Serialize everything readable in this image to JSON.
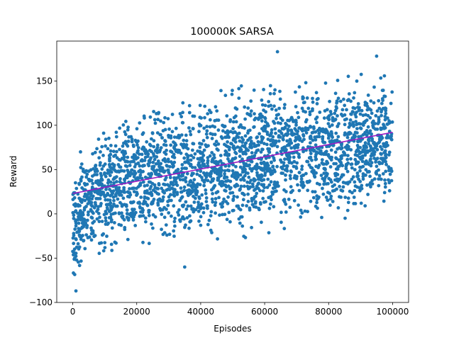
{
  "chart_data": {
    "type": "scatter",
    "title": "100000K SARSA",
    "xlabel": "Episodes",
    "ylabel": "Reward",
    "xlim": [
      -5000,
      105000
    ],
    "ylim": [
      -100,
      195
    ],
    "x_ticks": [
      0,
      20000,
      40000,
      60000,
      80000,
      100000
    ],
    "x_tick_labels": [
      "0",
      "20000",
      "40000",
      "60000",
      "80000",
      "100000"
    ],
    "y_ticks": [
      -100,
      -50,
      0,
      50,
      100,
      150
    ],
    "y_tick_labels": [
      "−100",
      "−50",
      "0",
      "50",
      "100",
      "150"
    ],
    "grid": false,
    "series": [
      {
        "type": "scatter",
        "color": "#1f77b4",
        "x_range": [
          0,
          100000
        ],
        "band_centers": [
          [
            0,
            -20
          ],
          [
            2000,
            0
          ],
          [
            5000,
            10
          ],
          [
            10000,
            25
          ],
          [
            15000,
            35
          ],
          [
            20000,
            40
          ],
          [
            30000,
            45
          ],
          [
            35000,
            40
          ],
          [
            40000,
            50
          ],
          [
            50000,
            55
          ],
          [
            60000,
            65
          ],
          [
            70000,
            70
          ],
          [
            80000,
            75
          ],
          [
            90000,
            80
          ],
          [
            100000,
            80
          ]
        ],
        "band_spread": [
          [
            0,
            60
          ],
          [
            5000,
            60
          ],
          [
            20000,
            65
          ],
          [
            40000,
            70
          ],
          [
            60000,
            70
          ],
          [
            100000,
            65
          ]
        ],
        "extremes": {
          "min": -87,
          "max": 183
        }
      },
      {
        "type": "line",
        "role": "linear-trend",
        "color": "#9b1ac2",
        "x": [
          0,
          100000
        ],
        "y": [
          23,
          92
        ]
      }
    ]
  }
}
